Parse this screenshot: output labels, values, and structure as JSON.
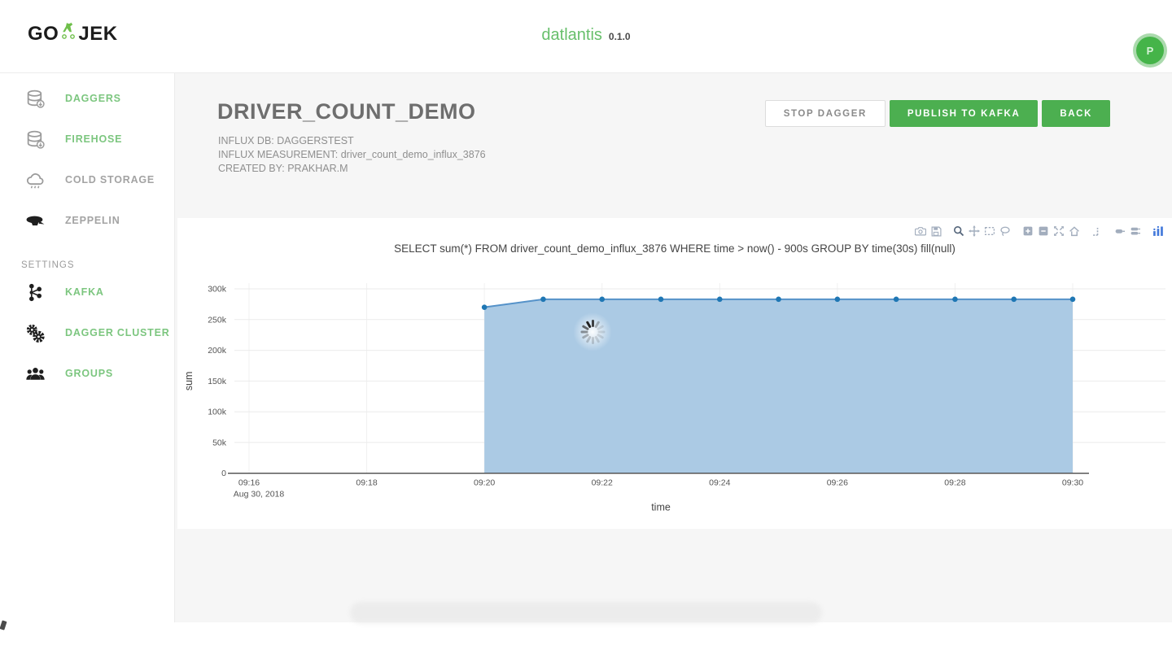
{
  "colors": {
    "accent_green": "#4caf50",
    "link_green": "#7cc67f",
    "brand_green": "#67bf6b",
    "chart_fill": "#abcae4",
    "chart_line": "#5592c9",
    "chart_marker": "#1f77b4",
    "plotly_logo_blue": "#447adb"
  },
  "header": {
    "logo_prefix": "GO",
    "logo_suffix": "JEK",
    "app_name": "datlantis",
    "version": "0.1.0",
    "avatar_initial": "P"
  },
  "sidebar": {
    "items": [
      {
        "label": "DAGGERS",
        "icon": "database"
      },
      {
        "label": "FIREHOSE",
        "icon": "database"
      },
      {
        "label": "COLD STORAGE",
        "icon": "cloud"
      },
      {
        "label": "ZEPPELIN",
        "icon": "zeppelin"
      }
    ],
    "section_label": "SETTINGS",
    "settings_items": [
      {
        "label": "KAFKA",
        "icon": "kafka"
      },
      {
        "label": "DAGGER CLUSTER",
        "icon": "gears"
      },
      {
        "label": "GROUPS",
        "icon": "groups"
      }
    ]
  },
  "main": {
    "title": "DRIVER_COUNT_DEMO",
    "influx_db": "INFLUX DB: DAGGERSTEST",
    "influx_measurement": "INFLUX MEASUREMENT: driver_count_demo_influx_3876",
    "created_by": "CREATED BY: PRAKHAR.M",
    "buttons": {
      "stop": "STOP DAGGER",
      "publish": "PUBLISH TO KAFKA",
      "back": "BACK"
    }
  },
  "chart_data": {
    "type": "area",
    "title": "SELECT sum(*) FROM driver_count_demo_influx_3876 WHERE time > now() - 900s GROUP BY time(30s) fill(null)",
    "xlabel": "time",
    "ylabel": "sum",
    "x": [
      "09:20",
      "09:21",
      "09:22",
      "09:23",
      "09:24",
      "09:25",
      "09:26",
      "09:27",
      "09:28",
      "09:29",
      "09:30"
    ],
    "values": [
      270000,
      283000,
      283000,
      283000,
      283000,
      283000,
      283000,
      283000,
      283000,
      283000,
      283000
    ],
    "xticks": [
      "09:16",
      "09:18",
      "09:20",
      "09:22",
      "09:24",
      "09:26",
      "09:28",
      "09:30"
    ],
    "xtick_date": "Aug 30, 2018",
    "yticks": [
      {
        "value": 0,
        "label": "0"
      },
      {
        "value": 50000,
        "label": "50k"
      },
      {
        "value": 100000,
        "label": "100k"
      },
      {
        "value": 150000,
        "label": "150k"
      },
      {
        "value": 200000,
        "label": "200k"
      },
      {
        "value": 250000,
        "label": "250k"
      },
      {
        "value": 300000,
        "label": "300k"
      }
    ],
    "ylim": [
      0,
      300000
    ],
    "grid": true,
    "legend": null,
    "loading": true,
    "modebar": [
      "camera",
      "save",
      "zoom",
      "pan",
      "box-select",
      "lasso",
      "zoom-in",
      "zoom-out",
      "autoscale",
      "reset-axes",
      "spike-lines",
      "hover-closest",
      "hover-compare",
      "plotly-logo"
    ]
  }
}
